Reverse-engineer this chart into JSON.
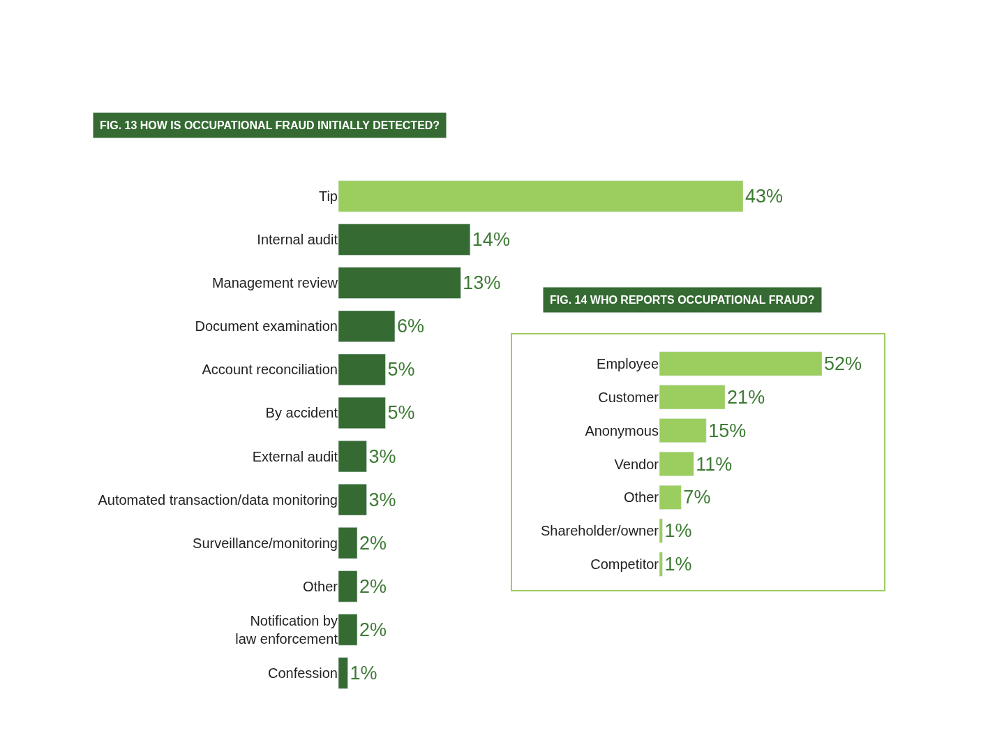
{
  "chart_data": [
    {
      "type": "bar",
      "orientation": "horizontal",
      "title": "FIG. 13 HOW IS OCCUPATIONAL FRAUD INITIALLY DETECTED?",
      "categories": [
        "Tip",
        "Internal audit",
        "Management review",
        "Document examination",
        "Account reconciliation",
        "By accident",
        "External audit",
        "Automated transaction/data monitoring",
        "Surveillance/monitoring",
        "Other",
        "Notification by\nlaw enforcement",
        "Confession"
      ],
      "values": [
        43,
        14,
        13,
        6,
        5,
        5,
        3,
        3,
        2,
        2,
        2,
        1
      ],
      "value_labels": [
        "43%",
        "14%",
        "13%",
        "6%",
        "5%",
        "5%",
        "3%",
        "3%",
        "2%",
        "2%",
        "2%",
        "1%"
      ],
      "colors": [
        "#9ccd5f",
        "#356a32",
        "#356a32",
        "#356a32",
        "#356a32",
        "#356a32",
        "#356a32",
        "#356a32",
        "#356a32",
        "#356a32",
        "#356a32",
        "#356a32"
      ]
    },
    {
      "type": "bar",
      "orientation": "horizontal",
      "title": "FIG. 14 WHO REPORTS OCCUPATIONAL FRAUD?",
      "categories": [
        "Employee",
        "Customer",
        "Anonymous",
        "Vendor",
        "Other",
        "Shareholder/owner",
        "Competitor"
      ],
      "values": [
        52,
        21,
        15,
        11,
        7,
        1,
        1
      ],
      "value_labels": [
        "52%",
        "21%",
        "15%",
        "11%",
        "7%",
        "1%",
        "1%"
      ],
      "colors": [
        "#9ccd5f",
        "#9ccd5f",
        "#9ccd5f",
        "#9ccd5f",
        "#9ccd5f",
        "#9ccd5f",
        "#9ccd5f"
      ]
    }
  ]
}
